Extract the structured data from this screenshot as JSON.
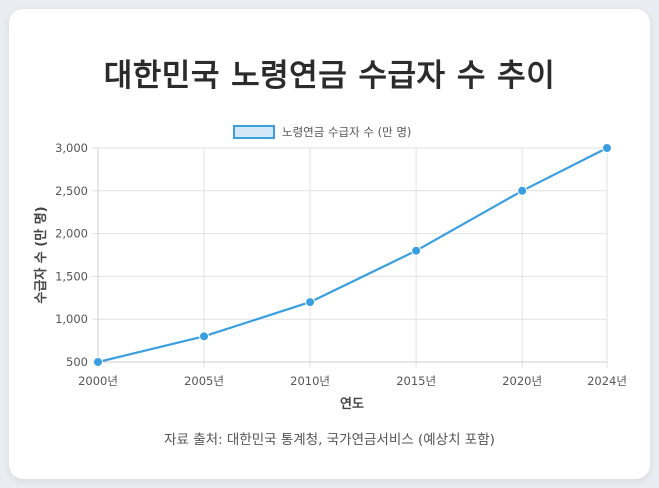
{
  "title": "대한민국 노령연금 수급자 수 추이",
  "source": "자료 출처: 대한민국 통계청, 국가연금서비스 (예상치 포함)",
  "colors": {
    "line": "#3a9fe0",
    "legend_fill": "#d2e8f8",
    "grid": "#e2e2e2",
    "text": "#555555"
  },
  "chart_data": {
    "type": "line",
    "categories": [
      "2000년",
      "2005년",
      "2010년",
      "2015년",
      "2020년",
      "2024년"
    ],
    "x": [
      2000,
      2005,
      2010,
      2015,
      2020,
      2024
    ],
    "series": [
      {
        "name": "노령연금 수급자 수 (만 명)",
        "values": [
          500,
          800,
          1200,
          1800,
          2500,
          3000
        ]
      }
    ],
    "yticks": [
      "500",
      "1,000",
      "1,500",
      "2,000",
      "2,500",
      "3,000"
    ],
    "ytick_values": [
      500,
      1000,
      1500,
      2000,
      2500,
      3000
    ],
    "xlabel": "연도",
    "ylabel": "수급자 수 (만 명)",
    "ylim": [
      500,
      3000
    ],
    "legend_position": "top-center",
    "grid": true
  }
}
